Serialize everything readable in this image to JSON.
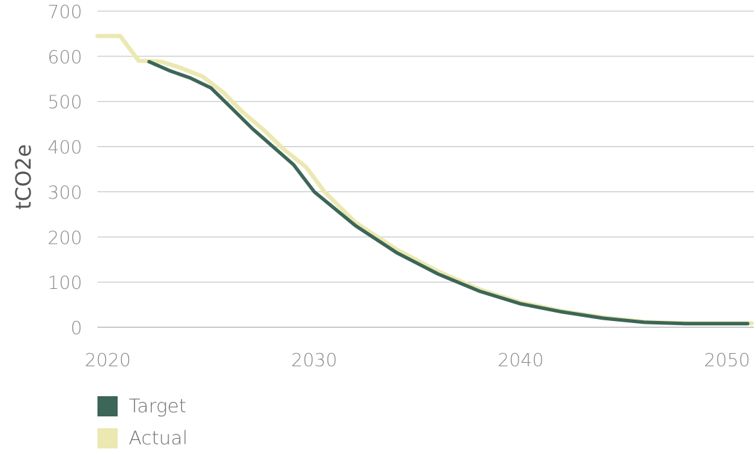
{
  "chart_data": {
    "type": "line",
    "title": "",
    "xlabel": "",
    "ylabel": "tCO2e",
    "xlim": [
      2019.5,
      2051.3
    ],
    "ylim": [
      0,
      700
    ],
    "x_ticks": [
      2020,
      2030,
      2040,
      2050
    ],
    "y_ticks": [
      0,
      100,
      200,
      300,
      400,
      500,
      600,
      700
    ],
    "grid": "horizontal",
    "legend_position": "bottom-left",
    "series": [
      {
        "name": "Target",
        "color": "#3c6657",
        "x": [
          2022,
          2023,
          2024,
          2025,
          2026,
          2027,
          2028,
          2029,
          2030,
          2032,
          2034,
          2036,
          2038,
          2040,
          2042,
          2044,
          2046,
          2048,
          2050,
          2051
        ],
        "values": [
          588,
          568,
          552,
          530,
          485,
          440,
          400,
          360,
          300,
          225,
          165,
          118,
          80,
          52,
          34,
          20,
          11,
          8,
          8,
          8
        ]
      },
      {
        "name": "Actual",
        "color": "#ebe8b1",
        "x": [
          2019.5,
          2020.6,
          2021.5,
          2022.6,
          2023.5,
          2024.6,
          2025.6,
          2026.5,
          2027.6,
          2028.5,
          2029.6,
          2030.5,
          2032,
          2034,
          2036,
          2038,
          2040,
          2042,
          2044,
          2046,
          2048,
          2050,
          2051.2
        ],
        "values": [
          645,
          645,
          590,
          588,
          575,
          555,
          520,
          478,
          435,
          395,
          355,
          300,
          232,
          172,
          124,
          84,
          55,
          36,
          22,
          12,
          9,
          9,
          9
        ]
      }
    ]
  }
}
